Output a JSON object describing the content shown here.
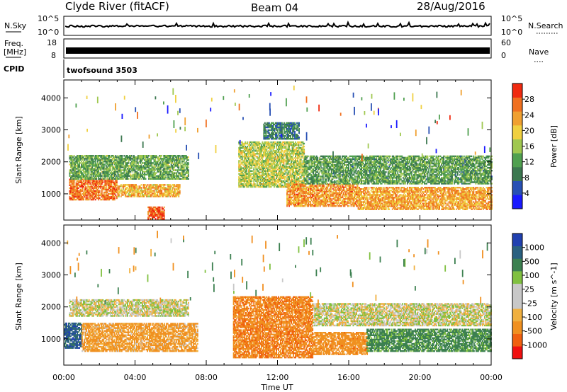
{
  "header": {
    "site": "Clyde River (fitACF)",
    "beam": "Beam 04",
    "date": "28/Aug/2016"
  },
  "status_panels": {
    "nsky_label": "N.Sky",
    "nsky_ticks": [
      "10^5",
      "10^0"
    ],
    "nsearch_label": "N.Search",
    "nsearch_ticks": [
      "10^5",
      "10^0"
    ],
    "freq_label": "Freq.",
    "freq_unit": "[MHz]",
    "freq_ticks": [
      "18",
      "8"
    ],
    "nave_label": "Nave",
    "nave_ticks": [
      "60",
      "0"
    ],
    "cpid_label": "CPID",
    "cpid_value": "twofsound 3503"
  },
  "colors": {
    "power_scale": [
      "#1a1aff",
      "#2850b4",
      "#3c7850",
      "#50a050",
      "#a0c850",
      "#f0d040",
      "#f0a030",
      "#f07020",
      "#f02a10"
    ],
    "velocity_scale": [
      "#f01010",
      "#f06010",
      "#f09020",
      "#f0b040",
      "#c8c8c8",
      "#c8c8c8",
      "#80c040",
      "#3c8050",
      "#2a6080",
      "#2040b0"
    ]
  },
  "chart_data": [
    {
      "type": "heatmap",
      "title": "Power",
      "xlabel": "",
      "ylabel": "Slant Range [km]",
      "x_ticks": [
        "00:00",
        "04:00",
        "08:00",
        "12:00",
        "16:00",
        "20:00",
        "00:00"
      ],
      "y_ticks": [
        1000,
        2000,
        3000,
        4000
      ],
      "ylim": [
        180,
        4560
      ],
      "xlim_hours": [
        0,
        24
      ],
      "colorbar": {
        "label": "Power [dB]",
        "ticks": [
          4,
          8,
          12,
          16,
          20,
          24,
          28
        ],
        "range": [
          0,
          32
        ]
      },
      "bands": [
        {
          "t0": 0.3,
          "t1": 3.0,
          "r0": 800,
          "r1": 1450,
          "dB": 26
        },
        {
          "t0": 3.0,
          "t1": 6.5,
          "r0": 900,
          "r1": 1300,
          "dB": 22
        },
        {
          "t0": 0.3,
          "t1": 7.0,
          "r0": 1450,
          "r1": 2200,
          "dB": 13
        },
        {
          "t0": 4.7,
          "t1": 5.6,
          "r0": 200,
          "r1": 600,
          "dB": 28
        },
        {
          "t0": 9.8,
          "t1": 13.5,
          "r0": 1200,
          "r1": 2600,
          "dB": 17
        },
        {
          "t0": 11.2,
          "t1": 13.2,
          "r0": 2700,
          "r1": 3200,
          "dB": 9
        },
        {
          "t0": 12.5,
          "t1": 16.5,
          "r0": 600,
          "r1": 1300,
          "dB": 24
        },
        {
          "t0": 16.5,
          "t1": 24.0,
          "r0": 500,
          "r1": 1200,
          "dB": 23
        },
        {
          "t0": 13.5,
          "t1": 24.0,
          "r0": 1300,
          "r1": 2200,
          "dB": 12
        }
      ]
    },
    {
      "type": "heatmap",
      "title": "Velocity",
      "xlabel": "Time UT",
      "ylabel": "Slant Range [km]",
      "x_ticks": [
        "00:00",
        "04:00",
        "08:00",
        "12:00",
        "16:00",
        "20:00",
        "00:00"
      ],
      "y_ticks": [
        1000,
        2000,
        3000,
        4000
      ],
      "ylim": [
        180,
        4560
      ],
      "xlim_hours": [
        0,
        24
      ],
      "colorbar": {
        "label": "Velocity [m s^-1]",
        "ticks": [
          -1000,
          -500,
          -100,
          -25,
          25,
          100,
          500,
          1000
        ]
      },
      "bands": [
        {
          "t0": 0.0,
          "t1": 1.0,
          "r0": 700,
          "r1": 1500,
          "v": 800
        },
        {
          "t0": 1.0,
          "t1": 7.5,
          "r0": 600,
          "r1": 1500,
          "v": -150
        },
        {
          "t0": 0.3,
          "t1": 7.0,
          "r0": 1700,
          "r1": 2200,
          "v": 0
        },
        {
          "t0": 9.5,
          "t1": 14.0,
          "r0": 400,
          "r1": 2300,
          "v": -400
        },
        {
          "t0": 14.0,
          "t1": 17.0,
          "r0": 500,
          "r1": 1200,
          "v": -300
        },
        {
          "t0": 14.0,
          "t1": 24.0,
          "r0": 1400,
          "r1": 2100,
          "v": 0
        },
        {
          "t0": 17.0,
          "t1": 24.0,
          "r0": 600,
          "r1": 1300,
          "v": 200
        }
      ]
    }
  ]
}
